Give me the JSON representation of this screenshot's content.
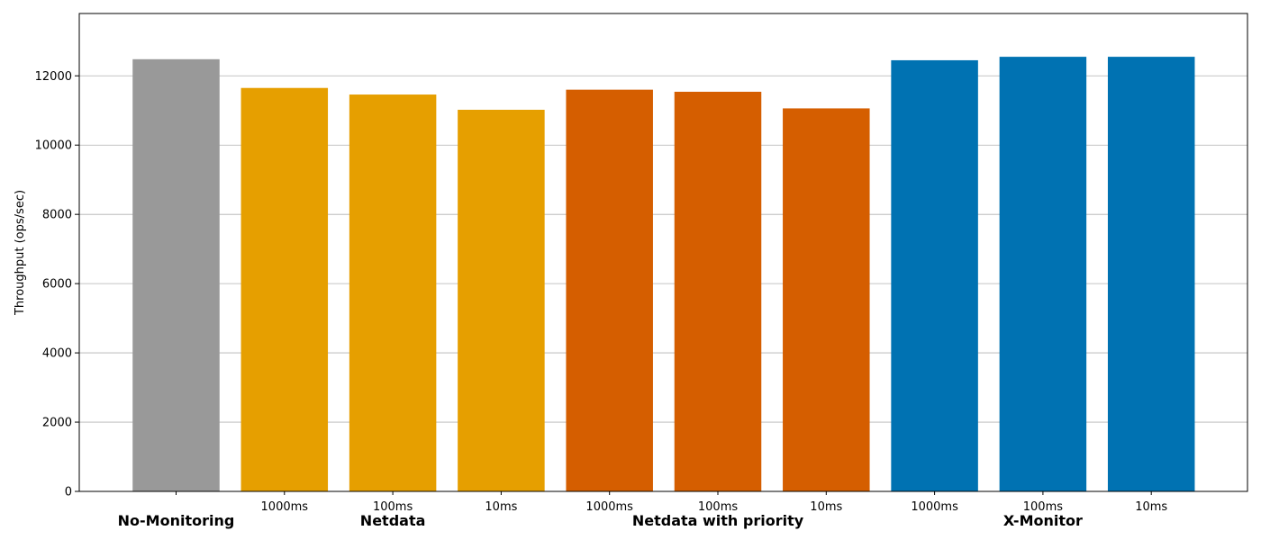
{
  "chart_data": {
    "type": "bar",
    "title": "",
    "xlabel": "",
    "ylabel": "Throughput (ops/sec)",
    "ylim": [
      0,
      13800
    ],
    "yticks": [
      0,
      2000,
      4000,
      6000,
      8000,
      10000,
      12000
    ],
    "grid": "y",
    "legend": "none",
    "bars": [
      {
        "group": "No-Monitoring",
        "label": "",
        "value": 12480,
        "color": "#999999"
      },
      {
        "group": "Netdata",
        "label": "1000ms",
        "value": 11650,
        "color": "#E69F00"
      },
      {
        "group": "Netdata",
        "label": "100ms",
        "value": 11460,
        "color": "#E69F00"
      },
      {
        "group": "Netdata",
        "label": "10ms",
        "value": 11020,
        "color": "#E69F00"
      },
      {
        "group": "Netdata with priority",
        "label": "1000ms",
        "value": 11600,
        "color": "#D55E00"
      },
      {
        "group": "Netdata with priority",
        "label": "100ms",
        "value": 11540,
        "color": "#D55E00"
      },
      {
        "group": "Netdata with priority",
        "label": "10ms",
        "value": 11060,
        "color": "#D55E00"
      },
      {
        "group": "X-Monitor",
        "label": "1000ms",
        "value": 12450,
        "color": "#0072B2"
      },
      {
        "group": "X-Monitor",
        "label": "100ms",
        "value": 12550,
        "color": "#0072B2"
      },
      {
        "group": "X-Monitor",
        "label": "10ms",
        "value": 12550,
        "color": "#0072B2"
      }
    ],
    "groups": [
      "No-Monitoring",
      "Netdata",
      "Netdata with priority",
      "X-Monitor"
    ]
  }
}
